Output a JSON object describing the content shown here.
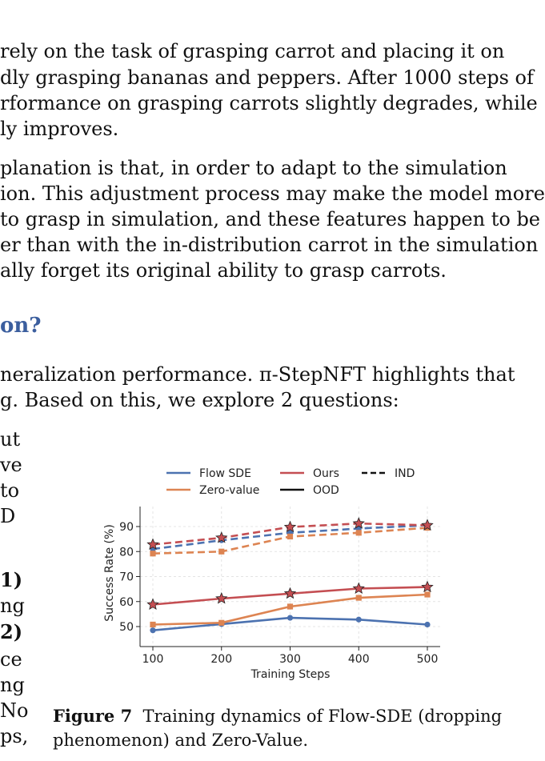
{
  "body": {
    "para1": [
      "rely on the task of grasping carrot and placing it on",
      "dly grasping bananas and peppers.  After 1000 steps of",
      "rformance on grasping carrots slightly degrades, while",
      "ly improves."
    ],
    "para2": [
      "planation is that, in order to adapt to the simulation",
      "ion.  This adjustment process may make the model more",
      "to grasp in simulation, and these features happen to be",
      "er than with the in-distribution carrot in the simulation",
      "ally forget its original ability to grasp carrots."
    ],
    "heading": "on?",
    "para3": [
      "neralization performance.  π-StepNFT highlights that",
      "g. Based on this, we explore 2 questions:"
    ],
    "left_column": [
      "ut",
      "ve",
      "to",
      "D",
      "1)",
      "ng",
      "2)",
      "ce",
      "ng",
      "No",
      "ps,"
    ]
  },
  "figure": {
    "caption_label": "Figure 7",
    "caption_lines": [
      "Training dynamics of Flow-SDE (dropping",
      "phenomenon) and Zero-Value."
    ]
  },
  "chart_data": {
    "type": "line",
    "x": [
      100,
      200,
      300,
      400,
      500
    ],
    "xlabel": "Training Steps",
    "ylabel": "Success Rate (%)",
    "xlim": [
      100,
      500
    ],
    "ylim": [
      42,
      98
    ],
    "yticks": [
      50,
      60,
      70,
      80,
      90
    ],
    "grid": true,
    "legend_placement": "top",
    "legend": [
      {
        "label": "Flow SDE",
        "color": "#4c72b0",
        "style": "solid"
      },
      {
        "label": "Ours",
        "color": "#c44e52",
        "style": "solid"
      },
      {
        "label": "IND",
        "color": "#111111",
        "style": "dashed"
      },
      {
        "label": "Zero-value",
        "color": "#dd8452",
        "style": "solid"
      },
      {
        "label": "OOD",
        "color": "#111111",
        "style": "solid"
      }
    ],
    "series": [
      {
        "method": "Flow SDE",
        "split": "OOD",
        "color": "#4c72b0",
        "dash": false,
        "marker": "circle",
        "values": [
          48.5,
          51,
          53.5,
          52.8,
          50.8
        ]
      },
      {
        "method": "Zero-value",
        "split": "OOD",
        "color": "#dd8452",
        "dash": false,
        "marker": "square",
        "values": [
          50.8,
          51.5,
          58,
          61.5,
          62.8
        ]
      },
      {
        "method": "Ours",
        "split": "OOD",
        "color": "#c44e52",
        "dash": false,
        "marker": "star",
        "values": [
          58.8,
          61.2,
          63.2,
          65.2,
          65.8
        ]
      },
      {
        "method": "Flow SDE",
        "split": "IND",
        "color": "#4c72b0",
        "dash": true,
        "marker": "circle",
        "values": [
          81,
          84.5,
          87.5,
          89.2,
          90.5
        ]
      },
      {
        "method": "Zero-value",
        "split": "IND",
        "color": "#dd8452",
        "dash": true,
        "marker": "square",
        "values": [
          79.2,
          80,
          86,
          87.5,
          89.5
        ]
      },
      {
        "method": "Ours",
        "split": "IND",
        "color": "#c44e52",
        "dash": true,
        "marker": "star",
        "values": [
          82.8,
          85.5,
          89.8,
          91.2,
          90.5
        ]
      }
    ]
  }
}
